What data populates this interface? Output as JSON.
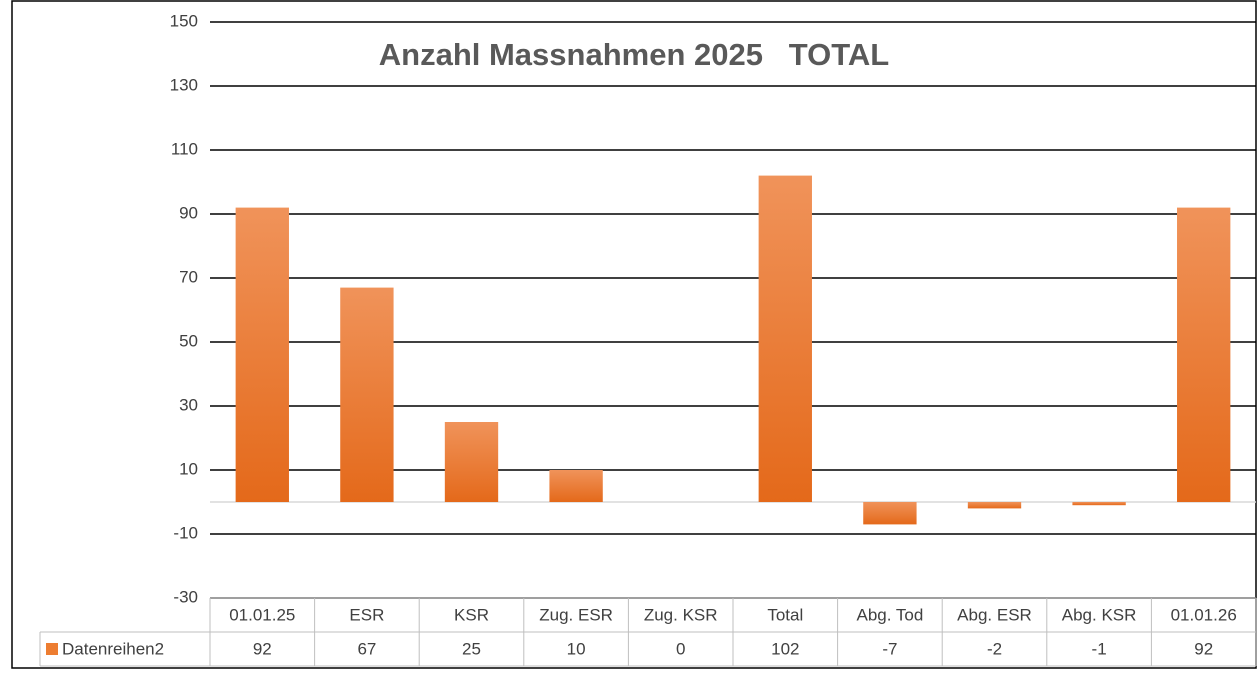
{
  "chart_data": {
    "type": "bar",
    "title": "Anzahl Massnahmen 2025   TOTAL",
    "categories": [
      "01.01.25",
      "ESR",
      "KSR",
      "Zug. ESR",
      "Zug. KSR",
      "Total",
      "Abg. Tod",
      "Abg. ESR",
      "Abg. KSR",
      "01.01.26"
    ],
    "series": [
      {
        "name": "Datenreihen2",
        "color": "#ed7d31",
        "values": [
          92,
          67,
          25,
          10,
          0,
          102,
          -7,
          -2,
          -1,
          92
        ]
      }
    ],
    "ylim": [
      -30,
      150
    ],
    "yticks": [
      -30,
      -10,
      10,
      30,
      50,
      70,
      90,
      110,
      130,
      150
    ],
    "grid": true,
    "data_table": true
  }
}
